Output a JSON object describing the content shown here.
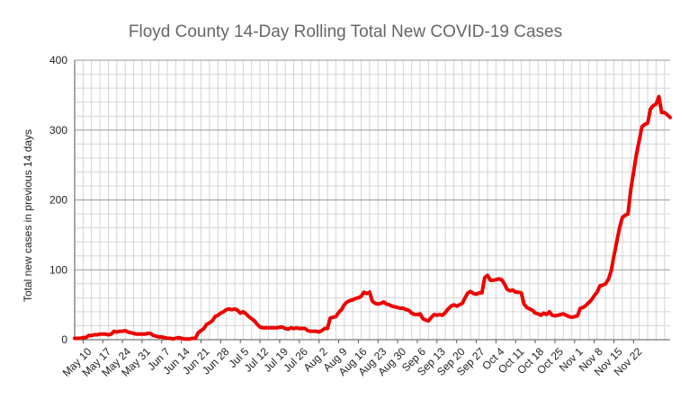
{
  "chart_data": {
    "type": "line",
    "title": "Floyd County 14-Day Rolling Total New COVID-19 Cases",
    "xlabel": "",
    "ylabel": "Total new cases in previous 14 days",
    "ylim": [
      0,
      400
    ],
    "yticks": [
      "0",
      "100",
      "200",
      "300",
      "400"
    ],
    "grid": true,
    "x_tick_labels": [
      "May 10",
      "May 17",
      "May 24",
      "May 31",
      "Jun 7",
      "Jun 14",
      "Jun 21",
      "Jun 28",
      "Jul 5",
      "Jul 12",
      "Jul 19",
      "Jul 26",
      "Aug 2",
      "Aug 9",
      "Aug 16",
      "Aug 23",
      "Aug 30",
      "Sep 6",
      "Sep 13",
      "Sep 20",
      "Sep 27",
      "Oct 4",
      "Oct 11",
      "Oct 18",
      "Oct 25",
      "Nov 1",
      "Nov 8",
      "Nov 15",
      "Nov 22"
    ],
    "x_start": "May 7",
    "x_end": "Nov 23",
    "line_color": "#ee0000",
    "series": [
      {
        "name": "",
        "values": [
          2,
          2,
          2,
          3,
          3,
          6,
          6,
          7,
          7,
          8,
          8,
          8,
          7,
          8,
          12,
          11,
          12,
          12,
          13,
          11,
          10,
          9,
          8,
          8,
          8,
          8,
          9,
          9,
          6,
          5,
          4,
          4,
          3,
          2,
          2,
          1,
          2,
          3,
          2,
          1,
          1,
          1,
          2,
          2,
          10,
          13,
          16,
          22,
          24,
          27,
          33,
          35,
          38,
          40,
          43,
          44,
          43,
          44,
          42,
          38,
          40,
          37,
          33,
          30,
          27,
          22,
          18,
          17,
          17,
          17,
          17,
          17,
          17,
          18,
          18,
          16,
          15,
          17,
          16,
          17,
          16,
          16,
          16,
          13,
          12,
          12,
          12,
          11,
          13,
          16,
          16,
          31,
          32,
          33,
          39,
          43,
          50,
          54,
          56,
          57,
          59,
          60,
          62,
          68,
          66,
          68,
          55,
          52,
          51,
          52,
          54,
          51,
          50,
          48,
          47,
          46,
          45,
          45,
          43,
          42,
          38,
          36,
          36,
          37,
          30,
          28,
          27,
          32,
          36,
          35,
          36,
          35,
          39,
          44,
          48,
          50,
          48,
          50,
          52,
          60,
          67,
          69,
          66,
          65,
          67,
          67,
          89,
          92,
          85,
          85,
          86,
          87,
          86,
          80,
          72,
          70,
          71,
          68,
          68,
          67,
          51,
          46,
          44,
          42,
          38,
          37,
          35,
          38,
          36,
          40,
          35,
          34,
          35,
          36,
          37,
          35,
          33,
          32,
          33,
          34,
          45,
          46,
          49,
          53,
          57,
          63,
          68,
          77,
          78,
          80,
          86,
          98,
          120,
          140,
          160,
          175,
          178,
          180,
          215,
          240,
          265,
          285,
          305,
          308,
          310,
          330,
          335,
          337,
          348,
          325,
          325,
          322,
          318
        ]
      }
    ]
  }
}
